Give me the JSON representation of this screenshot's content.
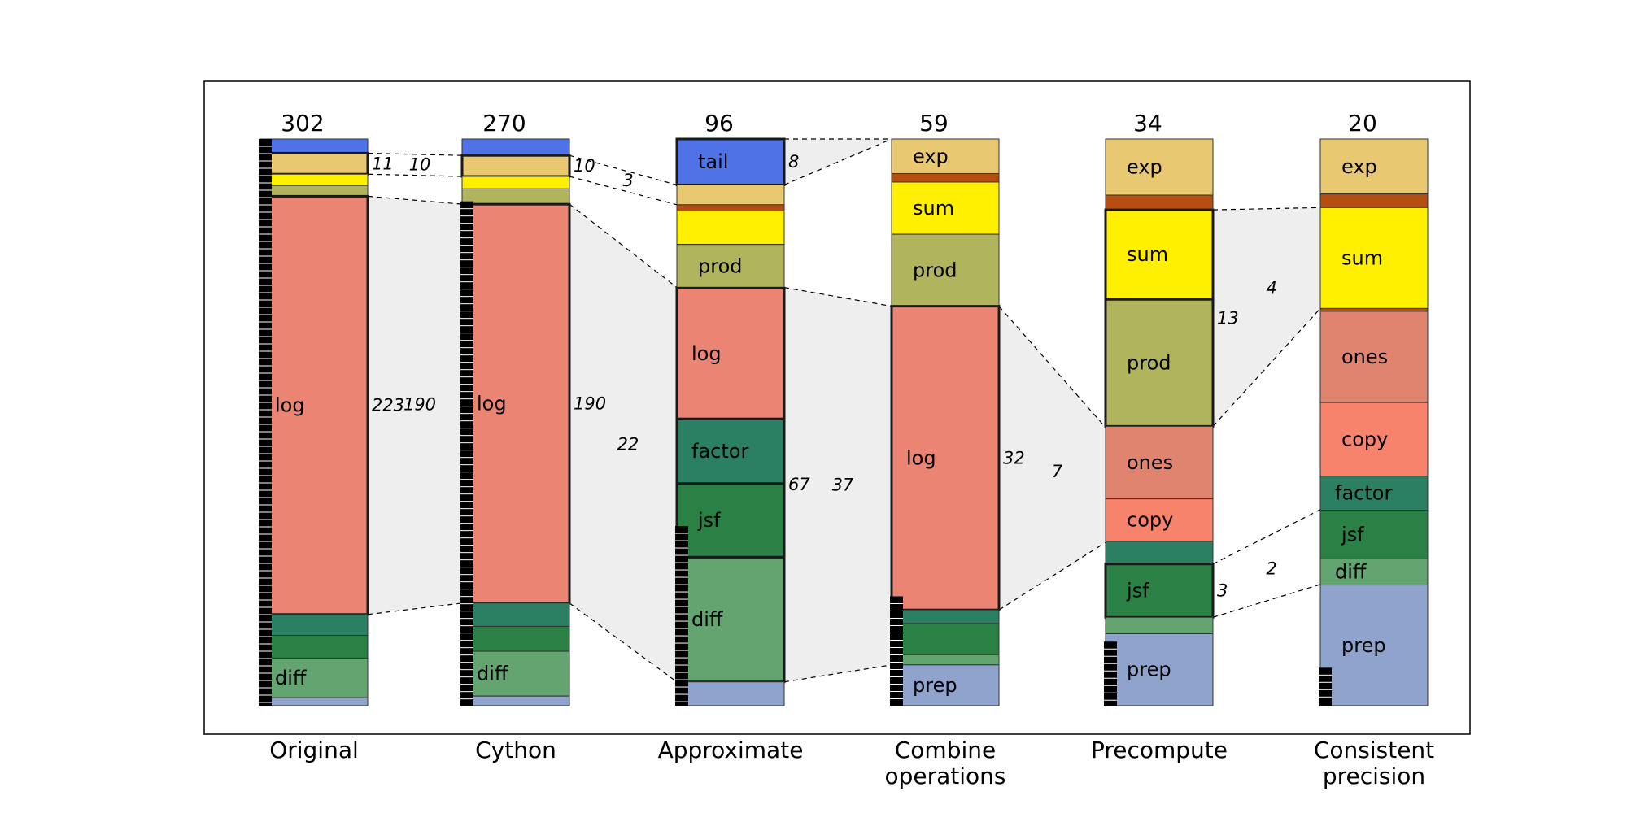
{
  "chart_data": {
    "type": "bar",
    "subtype": "stacked-normalized-waterfall",
    "colors": {
      "tail": "#4f73e6",
      "exp": "#e8c971",
      "exp2": "#b54f11",
      "sum": "#fff000",
      "prod": "#b0b45d",
      "log": "#eb8473",
      "ones": "#e08470",
      "copy": "#f7836d",
      "factor": "#2b8064",
      "jsf": "#2b8045",
      "diff": "#64a471",
      "prep": "#8fa3cc",
      "connector_fill": "#eeeeee"
    },
    "columns": [
      {
        "category": "Original",
        "total": "302",
        "marker_top": 0.0,
        "segments": [
          {
            "key": "tail",
            "value": 0.025,
            "label": ""
          },
          {
            "key": "exp",
            "value": 0.037,
            "label": "",
            "bold": true
          },
          {
            "key": "sum",
            "value": 0.02,
            "label": ""
          },
          {
            "key": "prod",
            "value": 0.019,
            "label": ""
          },
          {
            "key": "log",
            "value": 0.738,
            "label": "log",
            "bold": true
          },
          {
            "key": "factor",
            "value": 0.037,
            "label": ""
          },
          {
            "key": "jsf",
            "value": 0.04,
            "label": ""
          },
          {
            "key": "diff",
            "value": 0.07,
            "label": "diff"
          },
          {
            "key": "prep",
            "value": 0.014,
            "label": ""
          }
        ]
      },
      {
        "category": "Cython",
        "total": "270",
        "marker_top": 0.11,
        "segments": [
          {
            "key": "tail",
            "value": 0.029,
            "label": ""
          },
          {
            "key": "exp",
            "value": 0.037,
            "label": "",
            "bold": true
          },
          {
            "key": "sum",
            "value": 0.022,
            "label": ""
          },
          {
            "key": "prod",
            "value": 0.027,
            "label": ""
          },
          {
            "key": "log",
            "value": 0.704,
            "label": "log",
            "bold": true
          },
          {
            "key": "factor",
            "value": 0.041,
            "label": ""
          },
          {
            "key": "jsf",
            "value": 0.044,
            "label": ""
          },
          {
            "key": "diff",
            "value": 0.079,
            "label": "diff"
          },
          {
            "key": "prep",
            "value": 0.017,
            "label": ""
          }
        ]
      },
      {
        "category": "Approximate",
        "total": "96",
        "marker_top": 0.683,
        "segments": [
          {
            "key": "tail",
            "value": 0.081,
            "label": "tail",
            "bold": true
          },
          {
            "key": "exp",
            "value": 0.035,
            "label": ""
          },
          {
            "key": "exp2",
            "value": 0.011,
            "label": ""
          },
          {
            "key": "sum",
            "value": 0.059,
            "label": ""
          },
          {
            "key": "prod",
            "value": 0.077,
            "label": "prod"
          },
          {
            "key": "log",
            "value": 0.231,
            "label": "log",
            "bold": true
          },
          {
            "key": "factor",
            "value": 0.114,
            "label": "factor",
            "bold": true
          },
          {
            "key": "jsf",
            "value": 0.13,
            "label": "jsf",
            "bold": true
          },
          {
            "key": "diff",
            "value": 0.22,
            "label": "diff",
            "bold": true
          },
          {
            "key": "prep",
            "value": 0.042,
            "label": ""
          }
        ]
      },
      {
        "category": "Combine\noperations",
        "total": "59",
        "marker_top": 0.807,
        "segments": [
          {
            "key": "exp",
            "value": 0.061,
            "label": "exp"
          },
          {
            "key": "exp2",
            "value": 0.015,
            "label": ""
          },
          {
            "key": "sum",
            "value": 0.092,
            "label": "sum"
          },
          {
            "key": "prod",
            "value": 0.127,
            "label": "prod"
          },
          {
            "key": "log",
            "value": 0.536,
            "label": "log",
            "bold": true
          },
          {
            "key": "factor",
            "value": 0.024,
            "label": ""
          },
          {
            "key": "jsf",
            "value": 0.055,
            "label": ""
          },
          {
            "key": "diff",
            "value": 0.018,
            "label": ""
          },
          {
            "key": "prep",
            "value": 0.072,
            "label": "prep"
          }
        ]
      },
      {
        "category": "Precompute",
        "total": "34",
        "marker_top": 0.887,
        "segments": [
          {
            "key": "exp",
            "value": 0.099,
            "label": "exp"
          },
          {
            "key": "exp2",
            "value": 0.026,
            "label": ""
          },
          {
            "key": "sum",
            "value": 0.158,
            "label": "sum",
            "bold": true
          },
          {
            "key": "prod",
            "value": 0.224,
            "label": "prod",
            "bold": true
          },
          {
            "key": "ones",
            "value": 0.128,
            "label": "ones"
          },
          {
            "key": "copy",
            "value": 0.075,
            "label": "copy"
          },
          {
            "key": "factor",
            "value": 0.04,
            "label": ""
          },
          {
            "key": "jsf",
            "value": 0.094,
            "label": "jsf",
            "bold": true
          },
          {
            "key": "diff",
            "value": 0.029,
            "label": ""
          },
          {
            "key": "prep",
            "value": 0.127,
            "label": "prep"
          }
        ]
      },
      {
        "category": "Consistent\nprecision",
        "total": "20",
        "marker_top": 0.933,
        "segments": [
          {
            "key": "exp",
            "value": 0.097,
            "label": "exp"
          },
          {
            "key": "exp2",
            "value": 0.024,
            "label": ""
          },
          {
            "key": "sum",
            "value": 0.178,
            "label": "sum"
          },
          {
            "key": "exp2",
            "value": 0.005,
            "label": ""
          },
          {
            "key": "ones",
            "value": 0.161,
            "label": "ones"
          },
          {
            "key": "copy",
            "value": 0.13,
            "label": "copy"
          },
          {
            "key": "factor",
            "value": 0.06,
            "label": "factor"
          },
          {
            "key": "jsf",
            "value": 0.086,
            "label": "jsf"
          },
          {
            "key": "diff",
            "value": 0.046,
            "label": "diff"
          },
          {
            "key": "prep",
            "value": 0.213,
            "label": "prep"
          }
        ]
      }
    ],
    "transitions": [
      {
        "from_col": 0,
        "from_top": 0.025,
        "from_bot": 0.062,
        "to_top": 0.029,
        "to_bot": 0.066,
        "fill": false,
        "label_left": "11",
        "label_mid": "10"
      },
      {
        "from_col": 0,
        "from_top": 0.101,
        "from_bot": 0.839,
        "to_top": 0.115,
        "to_bot": 0.819,
        "fill": true,
        "label_left": "223",
        "label_mid": "190"
      },
      {
        "from_col": 1,
        "from_top": 0.029,
        "from_bot": 0.066,
        "to_top": 0.081,
        "to_bot": 0.116,
        "fill": false,
        "label_left": "10",
        "label_mid": "3"
      },
      {
        "from_col": 1,
        "from_top": 0.115,
        "from_bot": 0.819,
        "to_top": 0.262,
        "to_bot": 0.958,
        "fill": true,
        "label_left": "190",
        "label_mid": "22"
      },
      {
        "from_col": 2,
        "from_top": 0.0,
        "from_bot": 0.081,
        "to_top": 0.0,
        "to_bot": 0.0,
        "fill": true,
        "label_left": "8",
        "label_mid": ""
      },
      {
        "from_col": 2,
        "from_top": 0.262,
        "from_bot": 0.958,
        "to_top": 0.295,
        "to_bot": 0.928,
        "fill": true,
        "label_left": "67",
        "label_mid": "37"
      },
      {
        "from_col": 3,
        "from_top": 0.295,
        "from_bot": 0.831,
        "to_top": 0.509,
        "to_bot": 0.712,
        "fill": true,
        "label_left": "32",
        "label_mid": "7"
      },
      {
        "from_col": 4,
        "from_top": 0.125,
        "from_bot": 0.507,
        "to_top": 0.121,
        "to_bot": 0.299,
        "fill": true,
        "label_left": "13",
        "label_mid": "4"
      },
      {
        "from_col": 4,
        "from_top": 0.75,
        "from_bot": 0.844,
        "to_top": 0.654,
        "to_bot": 0.786,
        "fill": false,
        "label_left": "3",
        "label_mid": "2"
      }
    ]
  }
}
